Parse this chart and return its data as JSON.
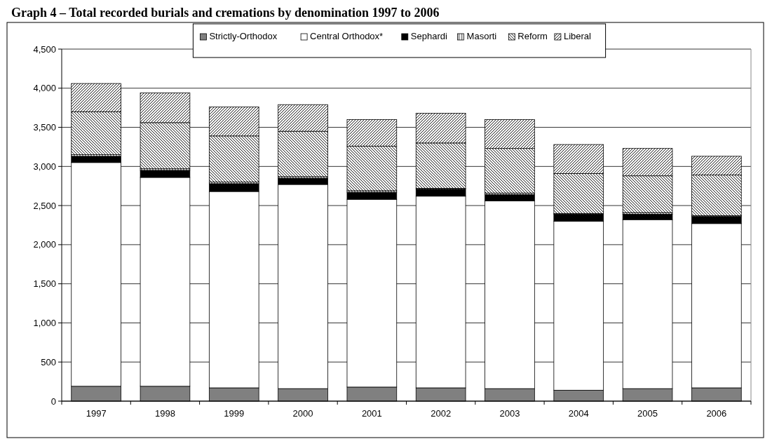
{
  "chart_data": {
    "type": "bar",
    "title": "Graph 4 – Total recorded burials and cremations by denomination 1997 to 2006",
    "stacked": true,
    "categories": [
      "1997",
      "1998",
      "1999",
      "2000",
      "2001",
      "2002",
      "2003",
      "2004",
      "2005",
      "2006"
    ],
    "series": [
      {
        "name": "Strictly-Orthodox",
        "color": "#808080",
        "values": [
          190,
          190,
          170,
          160,
          180,
          170,
          160,
          140,
          160,
          170
        ]
      },
      {
        "name": "Central Orthodox*",
        "color": "#ffffff",
        "values": [
          2860,
          2670,
          2510,
          2610,
          2400,
          2450,
          2400,
          2160,
          2160,
          2100
        ]
      },
      {
        "name": "Sephardi",
        "color": "#000000",
        "values": [
          80,
          90,
          100,
          80,
          90,
          90,
          80,
          90,
          70,
          90
        ]
      },
      {
        "name": "Masorti",
        "color": "#000000",
        "values": [
          20,
          20,
          20,
          20,
          20,
          10,
          20,
          10,
          20,
          10
        ]
      },
      {
        "name": "Reform",
        "color": "#000000",
        "values": [
          550,
          590,
          590,
          580,
          570,
          580,
          570,
          510,
          470,
          520
        ]
      },
      {
        "name": "Liberal",
        "color": "#000000",
        "values": [
          360,
          380,
          370,
          340,
          340,
          380,
          370,
          370,
          350,
          240
        ]
      }
    ],
    "ylim": [
      0,
      4500
    ],
    "yticks": [
      {
        "value": 0,
        "label": "0"
      },
      {
        "value": 500,
        "label": "500"
      },
      {
        "value": 1000,
        "label": "1,000"
      },
      {
        "value": 1500,
        "label": "1,500"
      },
      {
        "value": 2000,
        "label": "2,000"
      },
      {
        "value": 2500,
        "label": "2,500"
      },
      {
        "value": 3000,
        "label": "3,000"
      },
      {
        "value": 3500,
        "label": "3,500"
      },
      {
        "value": 4000,
        "label": "4,000"
      },
      {
        "value": 4500,
        "label": "4,500"
      }
    ],
    "grid": "y",
    "legend": "top"
  }
}
